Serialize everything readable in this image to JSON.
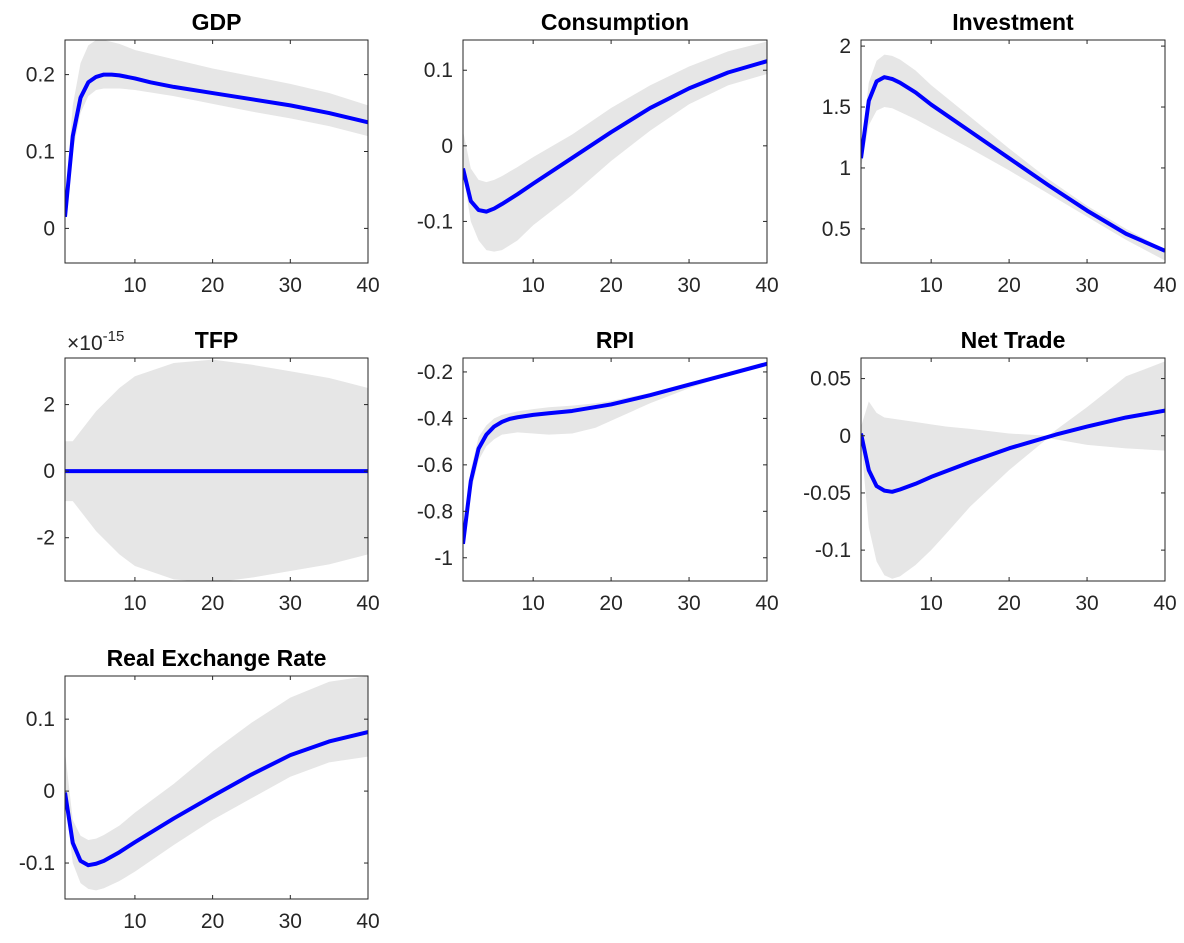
{
  "colors": {
    "line": "#0000ff",
    "band": "#e6e6e6",
    "axis": "#262626",
    "background": "#ffffff"
  },
  "chart_data": [
    {
      "type": "area",
      "title": "GDP",
      "xlim": [
        1,
        40
      ],
      "ylim": [
        -0.045,
        0.245
      ],
      "xticks": [
        10,
        20,
        30,
        40
      ],
      "xtick_labels": [
        "10",
        "20",
        "30",
        "40"
      ],
      "yticks": [
        0,
        0.1,
        0.2
      ],
      "ytick_labels": [
        "0",
        "0.1",
        "0.2"
      ],
      "grid": false,
      "series": [
        {
          "x": [
            1,
            2,
            3,
            4,
            5,
            6,
            7,
            8,
            10,
            12,
            15,
            20,
            25,
            30,
            35,
            40
          ],
          "values": [
            0.015,
            0.12,
            0.17,
            0.19,
            0.197,
            0.2,
            0.2,
            0.199,
            0.195,
            0.19,
            0.184,
            0.176,
            0.168,
            0.16,
            0.15,
            0.138
          ]
        }
      ],
      "band": {
        "x": [
          1,
          2,
          3,
          4,
          5,
          6,
          8,
          10,
          15,
          20,
          25,
          30,
          35,
          40
        ],
        "lower": [
          0.01,
          0.1,
          0.15,
          0.172,
          0.18,
          0.182,
          0.182,
          0.18,
          0.172,
          0.162,
          0.152,
          0.143,
          0.133,
          0.12
        ],
        "upper": [
          0.03,
          0.16,
          0.215,
          0.238,
          0.245,
          0.245,
          0.24,
          0.232,
          0.22,
          0.208,
          0.198,
          0.188,
          0.176,
          0.16
        ]
      }
    },
    {
      "type": "area",
      "title": "Consumption",
      "xlim": [
        1,
        40
      ],
      "ylim": [
        -0.155,
        0.14
      ],
      "xticks": [
        10,
        20,
        30,
        40
      ],
      "xtick_labels": [
        "10",
        "20",
        "30",
        "40"
      ],
      "yticks": [
        -0.1,
        0,
        0.1
      ],
      "ytick_labels": [
        "-0.1",
        "0",
        "0.1"
      ],
      "grid": false,
      "series": [
        {
          "x": [
            1,
            2,
            3,
            4,
            5,
            6,
            8,
            10,
            15,
            20,
            25,
            30,
            35,
            40
          ],
          "values": [
            -0.03,
            -0.073,
            -0.085,
            -0.087,
            -0.083,
            -0.077,
            -0.064,
            -0.05,
            -0.016,
            0.018,
            0.05,
            0.076,
            0.097,
            0.112
          ]
        }
      ],
      "band": {
        "x": [
          1,
          2,
          3,
          4,
          5,
          6,
          8,
          10,
          15,
          20,
          25,
          30,
          35,
          40
        ],
        "lower": [
          -0.035,
          -0.1,
          -0.125,
          -0.138,
          -0.14,
          -0.138,
          -0.125,
          -0.105,
          -0.065,
          -0.02,
          0.02,
          0.055,
          0.08,
          0.095
        ],
        "upper": [
          0.02,
          -0.03,
          -0.045,
          -0.048,
          -0.045,
          -0.04,
          -0.028,
          -0.015,
          0.015,
          0.05,
          0.08,
          0.105,
          0.125,
          0.138
        ]
      }
    },
    {
      "type": "area",
      "title": "Investment",
      "xlim": [
        1,
        40
      ],
      "ylim": [
        0.22,
        2.05
      ],
      "xticks": [
        10,
        20,
        30,
        40
      ],
      "xtick_labels": [
        "10",
        "20",
        "30",
        "40"
      ],
      "yticks": [
        0.5,
        1,
        1.5,
        2
      ],
      "ytick_labels": [
        "0.5",
        "1",
        "1.5",
        "2"
      ],
      "grid": false,
      "series": [
        {
          "x": [
            1,
            2,
            3,
            4,
            5,
            6,
            8,
            10,
            15,
            20,
            25,
            30,
            35,
            40
          ],
          "values": [
            1.08,
            1.55,
            1.71,
            1.745,
            1.73,
            1.7,
            1.62,
            1.52,
            1.3,
            1.08,
            0.86,
            0.65,
            0.46,
            0.32
          ]
        }
      ],
      "band": {
        "x": [
          1,
          2,
          3,
          4,
          5,
          6,
          8,
          10,
          15,
          20,
          25,
          30,
          35,
          40
        ],
        "lower": [
          1.0,
          1.35,
          1.47,
          1.5,
          1.49,
          1.46,
          1.4,
          1.33,
          1.16,
          0.98,
          0.79,
          0.6,
          0.41,
          0.24
        ],
        "upper": [
          1.15,
          1.7,
          1.88,
          1.93,
          1.92,
          1.89,
          1.8,
          1.68,
          1.42,
          1.16,
          0.91,
          0.69,
          0.5,
          0.33
        ]
      }
    },
    {
      "type": "area",
      "title": "TFP",
      "exponent_label": "-15",
      "xlim": [
        1,
        40
      ],
      "ylim": [
        -3.3,
        3.4
      ],
      "xticks": [
        10,
        20,
        30,
        40
      ],
      "xtick_labels": [
        "10",
        "20",
        "30",
        "40"
      ],
      "yticks": [
        -2,
        0,
        2
      ],
      "ytick_labels": [
        "-2",
        "0",
        "2"
      ],
      "grid": false,
      "series": [
        {
          "x": [
            1,
            40
          ],
          "values": [
            0,
            0
          ]
        }
      ],
      "band": {
        "x": [
          1,
          2,
          3,
          5,
          8,
          10,
          15,
          20,
          25,
          30,
          35,
          40
        ],
        "lower": [
          -0.9,
          -0.9,
          -1.2,
          -1.8,
          -2.5,
          -2.85,
          -3.25,
          -3.35,
          -3.2,
          -3.0,
          -2.8,
          -2.5
        ],
        "upper": [
          0.9,
          0.9,
          1.2,
          1.8,
          2.5,
          2.85,
          3.25,
          3.35,
          3.2,
          3.0,
          2.8,
          2.5
        ]
      }
    },
    {
      "type": "area",
      "title": "RPI",
      "xlim": [
        1,
        40
      ],
      "ylim": [
        -1.1,
        -0.14
      ],
      "xticks": [
        10,
        20,
        30,
        40
      ],
      "xtick_labels": [
        "10",
        "20",
        "30",
        "40"
      ],
      "yticks": [
        -1,
        -0.8,
        -0.6,
        -0.4,
        -0.2
      ],
      "ytick_labels": [
        "-1",
        "-0.8",
        "-0.6",
        "-0.4",
        "-0.2"
      ],
      "grid": false,
      "series": [
        {
          "x": [
            1,
            2,
            3,
            4,
            5,
            6,
            7,
            8,
            10,
            12,
            15,
            20,
            25,
            30,
            35,
            40
          ],
          "values": [
            -0.94,
            -0.67,
            -0.53,
            -0.47,
            -0.435,
            -0.415,
            -0.402,
            -0.395,
            -0.385,
            -0.378,
            -0.368,
            -0.34,
            -0.3,
            -0.255,
            -0.21,
            -0.165
          ]
        }
      ],
      "band": {
        "x": [
          1,
          2,
          3,
          4,
          5,
          6,
          8,
          10,
          12,
          15,
          18,
          20,
          25,
          30,
          35,
          40
        ],
        "lower": [
          -0.96,
          -0.72,
          -0.58,
          -0.52,
          -0.49,
          -0.47,
          -0.46,
          -0.465,
          -0.47,
          -0.465,
          -0.44,
          -0.41,
          -0.335,
          -0.27,
          -0.215,
          -0.17
        ],
        "upper": [
          -0.92,
          -0.62,
          -0.48,
          -0.43,
          -0.4,
          -0.385,
          -0.37,
          -0.36,
          -0.352,
          -0.345,
          -0.335,
          -0.325,
          -0.29,
          -0.245,
          -0.2,
          -0.155
        ]
      }
    },
    {
      "type": "area",
      "title": "Net Trade",
      "xlim": [
        1,
        40
      ],
      "ylim": [
        -0.127,
        0.068
      ],
      "xticks": [
        10,
        20,
        30,
        40
      ],
      "xtick_labels": [
        "10",
        "20",
        "30",
        "40"
      ],
      "yticks": [
        -0.1,
        -0.05,
        0,
        0.05
      ],
      "ytick_labels": [
        "-0.1",
        "-0.05",
        "0",
        "0.05"
      ],
      "grid": false,
      "series": [
        {
          "x": [
            1,
            2,
            3,
            4,
            5,
            6,
            8,
            10,
            15,
            20,
            24,
            26,
            30,
            35,
            40
          ],
          "values": [
            0.002,
            -0.03,
            -0.044,
            -0.048,
            -0.049,
            -0.047,
            -0.042,
            -0.036,
            -0.023,
            -0.011,
            -0.003,
            0.001,
            0.008,
            0.016,
            0.022
          ]
        }
      ],
      "band": {
        "x": [
          1,
          2,
          3,
          4,
          5,
          6,
          8,
          10,
          12,
          15,
          20,
          25,
          30,
          35,
          40
        ],
        "lower": [
          -0.005,
          -0.08,
          -0.11,
          -0.122,
          -0.125,
          -0.123,
          -0.113,
          -0.1,
          -0.085,
          -0.062,
          -0.03,
          -0.002,
          -0.008,
          -0.011,
          -0.013
        ],
        "upper": [
          0.008,
          0.03,
          0.02,
          0.016,
          0.015,
          0.014,
          0.012,
          0.01,
          0.008,
          0.006,
          0.002,
          0.0,
          0.025,
          0.052,
          0.065
        ]
      }
    },
    {
      "type": "area",
      "title": "Real Exchange Rate",
      "xlim": [
        1,
        40
      ],
      "ylim": [
        -0.15,
        0.16
      ],
      "xticks": [
        10,
        20,
        30,
        40
      ],
      "xtick_labels": [
        "10",
        "20",
        "30",
        "40"
      ],
      "yticks": [
        -0.1,
        0,
        0.1
      ],
      "ytick_labels": [
        "-0.1",
        "0",
        "0.1"
      ],
      "grid": false,
      "series": [
        {
          "x": [
            1,
            2,
            3,
            4,
            5,
            6,
            8,
            10,
            15,
            20,
            25,
            30,
            35,
            40
          ],
          "values": [
            -0.002,
            -0.072,
            -0.097,
            -0.103,
            -0.101,
            -0.097,
            -0.085,
            -0.071,
            -0.038,
            -0.007,
            0.023,
            0.05,
            0.069,
            0.082
          ]
        }
      ],
      "band": {
        "x": [
          1,
          2,
          3,
          4,
          5,
          6,
          8,
          10,
          15,
          20,
          25,
          30,
          35,
          40
        ],
        "lower": [
          -0.01,
          -0.1,
          -0.128,
          -0.136,
          -0.138,
          -0.135,
          -0.125,
          -0.112,
          -0.075,
          -0.04,
          -0.01,
          0.02,
          0.04,
          0.048
        ],
        "upper": [
          0.055,
          -0.04,
          -0.062,
          -0.068,
          -0.066,
          -0.061,
          -0.048,
          -0.03,
          0.01,
          0.055,
          0.095,
          0.13,
          0.152,
          0.16
        ]
      }
    }
  ]
}
